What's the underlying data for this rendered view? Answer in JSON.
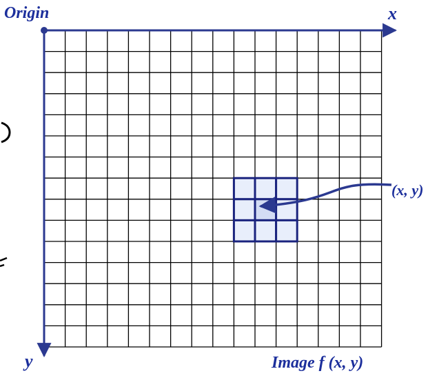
{
  "labels": {
    "origin": "Origin",
    "x_axis": "x",
    "y_axis": "y",
    "point": "(x, y)",
    "caption": "Image f (x, y)"
  },
  "grid": {
    "columns": 16,
    "rows": 15,
    "neighborhood": {
      "size": 3,
      "center_col": 10,
      "center_row": 8
    }
  },
  "colors": {
    "axis": "#2b3990",
    "label": "#1c2f9c",
    "grid_line": "#000000",
    "neighborhood_outline": "#1a237e",
    "neighborhood_fill": "#e8eefb",
    "center_fill": "#d3dcf4",
    "arrow": "#2b3990"
  }
}
